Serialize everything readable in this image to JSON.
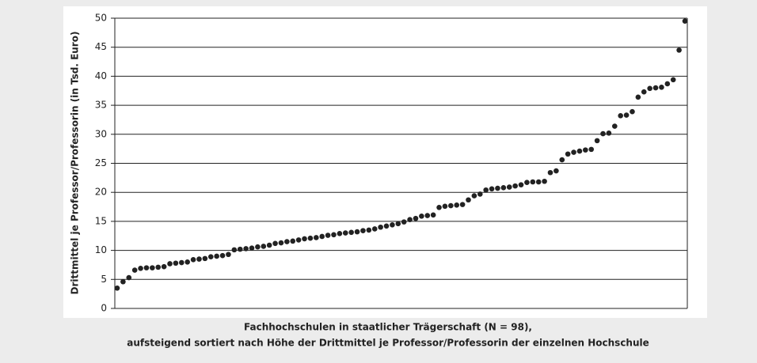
{
  "chart_data": {
    "type": "scatter",
    "ylabel": "Drittmittel je Professor/Professorin (in Tsd. Euro)",
    "xlabel": [
      "Fachhochschulen in staatlicher Trägerschaft (N = 98),",
      "aufsteigend sortiert nach Höhe der Drittmittel je Professor/Professorin der einzelnen Hochschule"
    ],
    "values": [
      3.5,
      4.6,
      5.3,
      6.6,
      6.9,
      7.0,
      7.0,
      7.1,
      7.2,
      7.7,
      7.8,
      7.9,
      8.0,
      8.4,
      8.5,
      8.6,
      8.9,
      9.0,
      9.1,
      9.3,
      10.1,
      10.2,
      10.3,
      10.4,
      10.6,
      10.7,
      10.9,
      11.2,
      11.3,
      11.5,
      11.6,
      11.8,
      12.0,
      12.1,
      12.2,
      12.4,
      12.6,
      12.7,
      12.9,
      13.0,
      13.1,
      13.2,
      13.4,
      13.5,
      13.7,
      14.0,
      14.2,
      14.4,
      14.6,
      14.9,
      15.3,
      15.5,
      15.9,
      16.0,
      16.1,
      17.4,
      17.6,
      17.7,
      17.8,
      17.9,
      18.7,
      19.4,
      19.7,
      20.4,
      20.6,
      20.7,
      20.8,
      20.9,
      21.1,
      21.3,
      21.7,
      21.8,
      21.8,
      21.9,
      23.4,
      23.7,
      25.6,
      26.6,
      26.9,
      27.1,
      27.3,
      27.4,
      28.9,
      30.1,
      30.2,
      31.4,
      33.2,
      33.3,
      33.9,
      36.4,
      37.3,
      37.9,
      38.0,
      38.1,
      38.7,
      39.4,
      44.5,
      49.5
    ],
    "color": "#222222",
    "ylim": [
      0,
      50
    ],
    "yticks": [
      0,
      5,
      10,
      15,
      20,
      25,
      30,
      35,
      40,
      45,
      50
    ],
    "grid": true
  }
}
